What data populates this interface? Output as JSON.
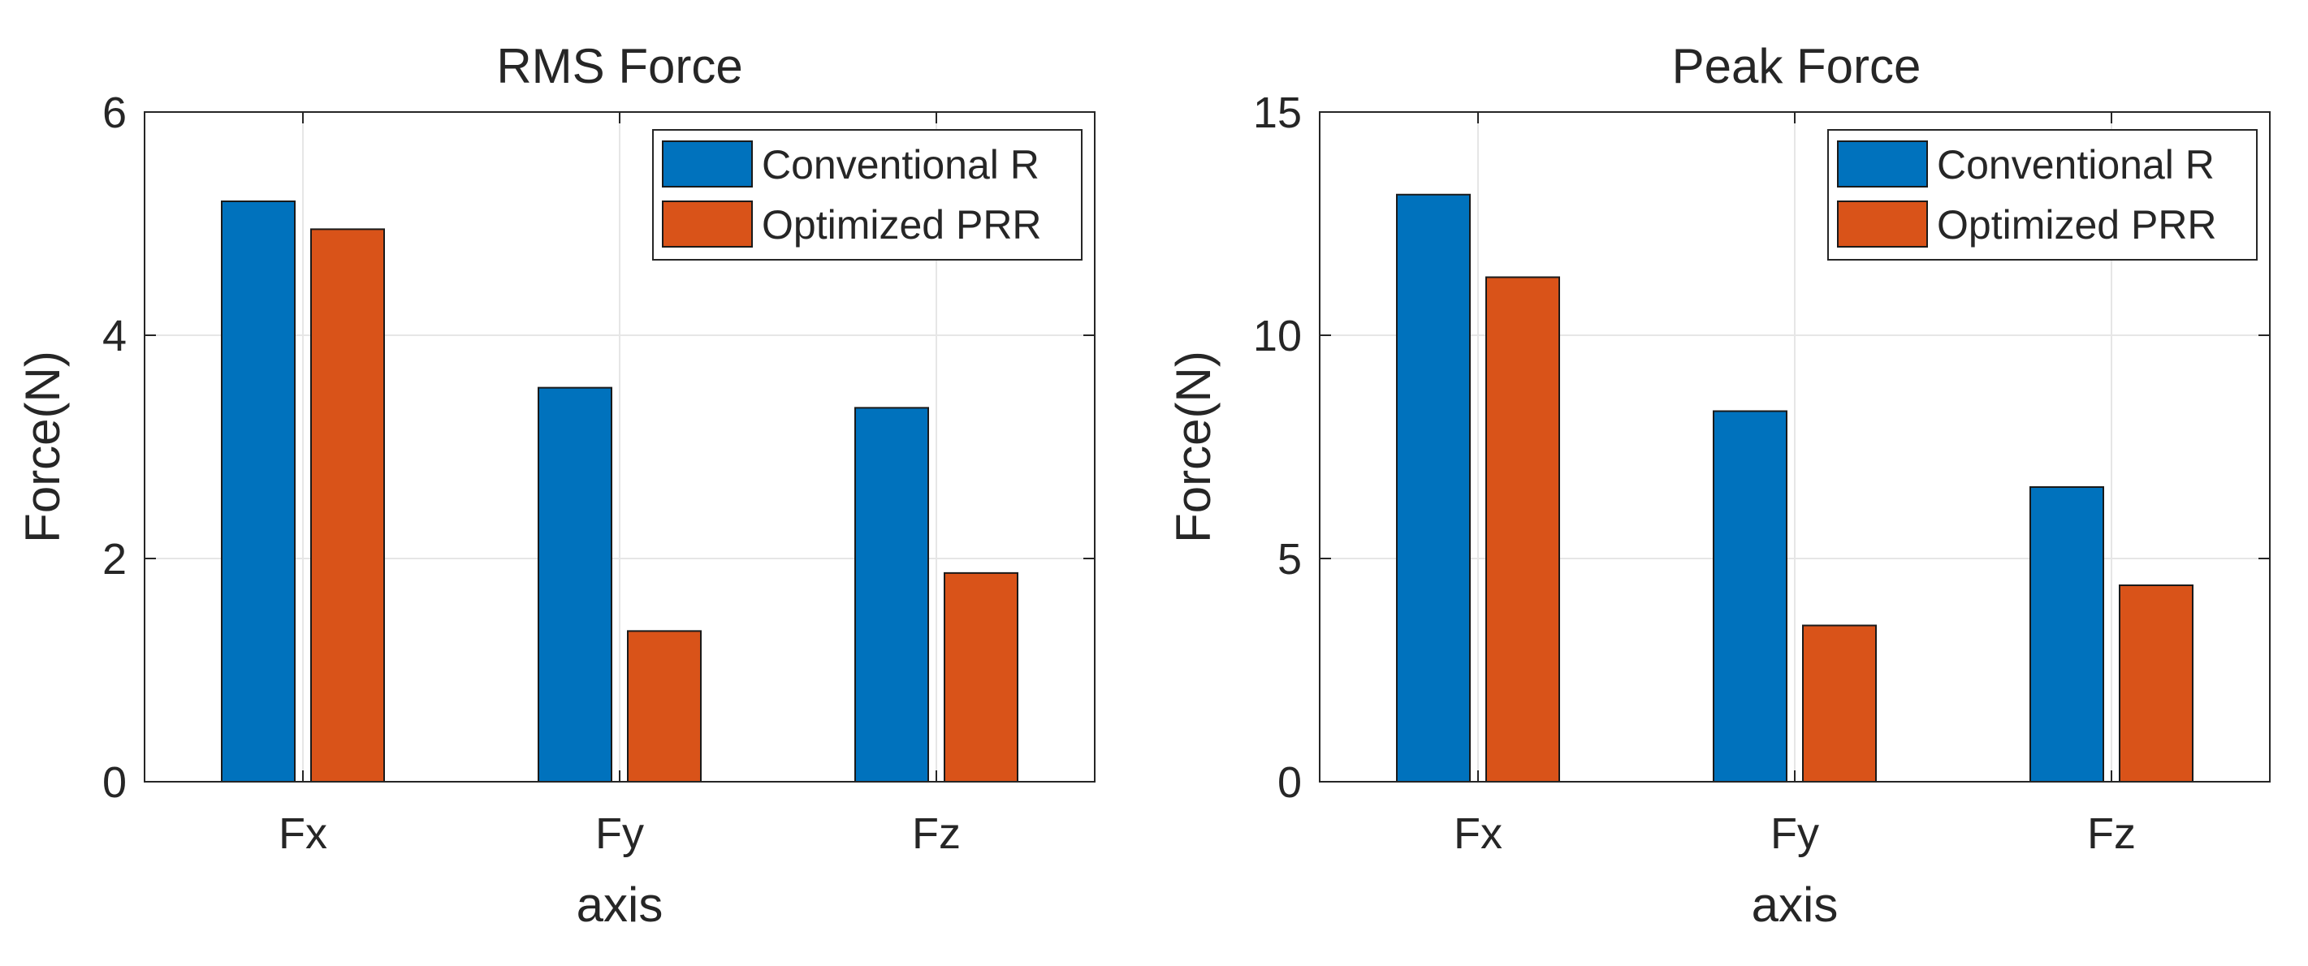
{
  "chart_data": [
    {
      "type": "bar",
      "title": "RMS Force",
      "xlabel": "axis",
      "ylabel": "Force(N)",
      "categories": [
        "Fx",
        "Fy",
        "Fz"
      ],
      "ylim": [
        0,
        6
      ],
      "yticks": [
        0,
        2,
        4,
        6
      ],
      "grid": true,
      "legend_position": "top-right",
      "series": [
        {
          "name": "Conventional R",
          "color": "#0072BD",
          "values": [
            5.2,
            3.53,
            3.35
          ]
        },
        {
          "name": "Optimized PRR",
          "color": "#D95319",
          "values": [
            4.95,
            1.35,
            1.87
          ]
        }
      ]
    },
    {
      "type": "bar",
      "title": "Peak Force",
      "xlabel": "axis",
      "ylabel": "Force(N)",
      "categories": [
        "Fx",
        "Fy",
        "Fz"
      ],
      "ylim": [
        0,
        15
      ],
      "yticks": [
        0,
        5,
        10,
        15
      ],
      "grid": true,
      "legend_position": "top-right",
      "series": [
        {
          "name": "Conventional R",
          "color": "#0072BD",
          "values": [
            13.15,
            8.3,
            6.6
          ]
        },
        {
          "name": "Optimized PRR",
          "color": "#D95319",
          "values": [
            11.3,
            3.5,
            4.4
          ]
        }
      ]
    }
  ]
}
